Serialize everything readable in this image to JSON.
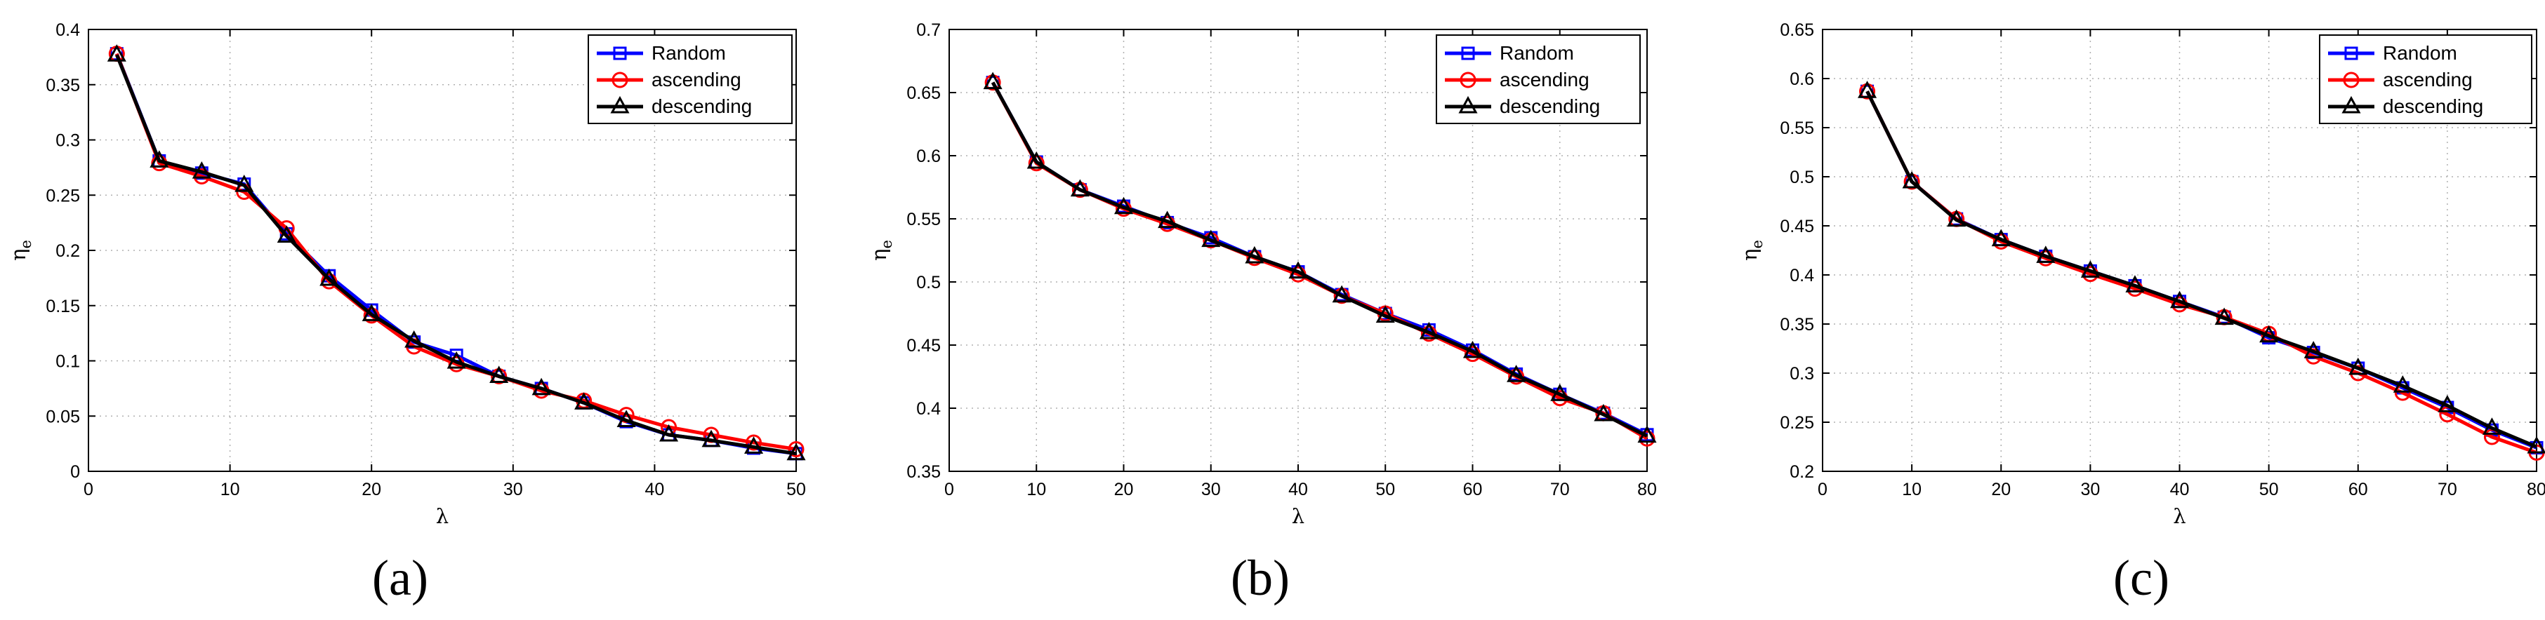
{
  "figure": {
    "colors": {
      "Random": "#0000ff",
      "ascending": "#ff0000",
      "descending": "#000000"
    },
    "legend_entries": [
      "Random",
      "ascending",
      "descending"
    ],
    "legend_placement": "top-right"
  },
  "chart_data": [
    {
      "type": "line",
      "caption": "(a)",
      "xlabel": "λ",
      "ylabel_main": "η",
      "ylabel_sub": "e",
      "xlim": [
        0,
        50
      ],
      "ylim": [
        0,
        0.4
      ],
      "xticks": [
        0,
        10,
        20,
        30,
        40,
        50
      ],
      "yticks": [
        0,
        0.05,
        0.1,
        0.15,
        0.2,
        0.25,
        0.3,
        0.35,
        0.4
      ],
      "grid": true,
      "x": [
        2,
        5,
        8,
        11,
        14,
        17,
        20,
        23,
        26,
        29,
        32,
        35,
        38,
        41,
        44,
        47,
        50
      ],
      "series": [
        {
          "name": "Random",
          "marker": "square",
          "values": [
            0.378,
            0.281,
            0.27,
            0.26,
            0.215,
            0.177,
            0.146,
            0.117,
            0.105,
            0.086,
            0.075,
            0.062,
            0.045,
            0.033,
            0.028,
            0.021,
            0.016
          ]
        },
        {
          "name": "ascending",
          "marker": "circle",
          "values": [
            0.378,
            0.279,
            0.267,
            0.253,
            0.22,
            0.172,
            0.141,
            0.113,
            0.097,
            0.086,
            0.073,
            0.064,
            0.051,
            0.04,
            0.033,
            0.026,
            0.02
          ]
        },
        {
          "name": "descending",
          "marker": "triangle",
          "values": [
            0.377,
            0.281,
            0.271,
            0.259,
            0.213,
            0.174,
            0.142,
            0.118,
            0.099,
            0.086,
            0.075,
            0.062,
            0.046,
            0.033,
            0.028,
            0.022,
            0.016
          ]
        }
      ]
    },
    {
      "type": "line",
      "caption": "(b)",
      "xlabel": "λ",
      "ylabel_main": "η",
      "ylabel_sub": "e",
      "xlim": [
        0,
        80
      ],
      "ylim": [
        0.35,
        0.7
      ],
      "xticks": [
        0,
        10,
        20,
        30,
        40,
        50,
        60,
        70,
        80
      ],
      "yticks": [
        0.35,
        0.4,
        0.45,
        0.5,
        0.55,
        0.6,
        0.65,
        0.7
      ],
      "grid": true,
      "x": [
        5,
        10,
        15,
        20,
        25,
        30,
        35,
        40,
        45,
        50,
        55,
        60,
        65,
        70,
        75,
        80
      ],
      "series": [
        {
          "name": "Random",
          "marker": "square",
          "values": [
            0.658,
            0.595,
            0.573,
            0.56,
            0.547,
            0.535,
            0.52,
            0.508,
            0.49,
            0.475,
            0.462,
            0.446,
            0.427,
            0.411,
            0.396,
            0.379
          ]
        },
        {
          "name": "ascending",
          "marker": "circle",
          "values": [
            0.658,
            0.594,
            0.573,
            0.558,
            0.546,
            0.533,
            0.519,
            0.506,
            0.489,
            0.475,
            0.459,
            0.443,
            0.425,
            0.408,
            0.396,
            0.376
          ]
        },
        {
          "name": "descending",
          "marker": "triangle",
          "values": [
            0.658,
            0.595,
            0.573,
            0.559,
            0.548,
            0.533,
            0.52,
            0.508,
            0.489,
            0.473,
            0.46,
            0.445,
            0.426,
            0.411,
            0.395,
            0.378
          ]
        }
      ]
    },
    {
      "type": "line",
      "caption": "(c)",
      "xlabel": "λ",
      "ylabel_main": "η",
      "ylabel_sub": "e",
      "xlim": [
        0,
        80
      ],
      "ylim": [
        0.2,
        0.65
      ],
      "xticks": [
        0,
        10,
        20,
        30,
        40,
        50,
        60,
        70,
        80
      ],
      "yticks": [
        0.2,
        0.25,
        0.3,
        0.35,
        0.4,
        0.45,
        0.5,
        0.55,
        0.6,
        0.65
      ],
      "grid": true,
      "x": [
        5,
        10,
        15,
        20,
        25,
        30,
        35,
        40,
        45,
        50,
        55,
        60,
        65,
        70,
        75,
        80
      ],
      "series": [
        {
          "name": "Random",
          "marker": "square",
          "values": [
            0.587,
            0.495,
            0.457,
            0.436,
            0.419,
            0.404,
            0.389,
            0.373,
            0.357,
            0.336,
            0.321,
            0.305,
            0.285,
            0.265,
            0.242,
            0.224
          ]
        },
        {
          "name": "ascending",
          "marker": "circle",
          "values": [
            0.587,
            0.495,
            0.457,
            0.434,
            0.417,
            0.401,
            0.386,
            0.37,
            0.357,
            0.34,
            0.317,
            0.3,
            0.28,
            0.258,
            0.235,
            0.219
          ]
        },
        {
          "name": "descending",
          "marker": "triangle",
          "values": [
            0.587,
            0.495,
            0.456,
            0.436,
            0.419,
            0.404,
            0.389,
            0.373,
            0.356,
            0.338,
            0.322,
            0.305,
            0.287,
            0.267,
            0.244,
            0.225
          ]
        }
      ]
    }
  ]
}
